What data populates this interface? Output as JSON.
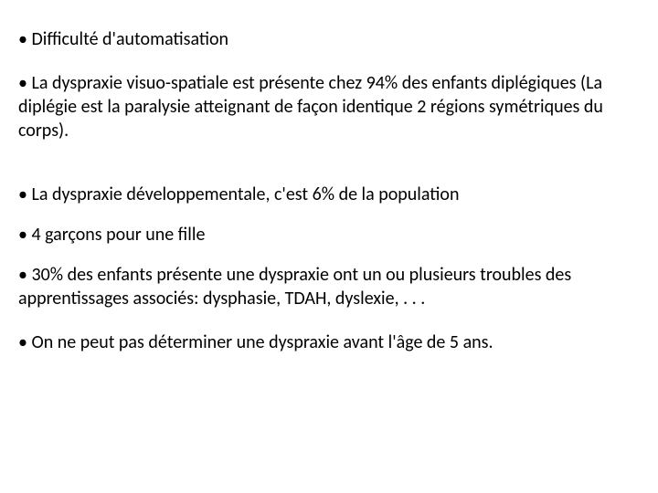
{
  "items": [
    "• Difficulté d'automatisation",
    "• La dyspraxie visuo-spatiale est présente chez 94% des enfants diplégiques (La diplégie est la paralysie atteignant de façon identique 2 régions symétriques du corps).",
    "• La dyspraxie développementale, c'est 6% de la population",
    "• 4 garçons pour une fille",
    "• 30% des enfants présente une dyspraxie ont un ou plusieurs troubles des apprentissages associés: dysphasie, TDAH, dyslexie, . . .",
    "• On ne peut pas déterminer une dyspraxie avant l'âge de 5 ans."
  ],
  "styles": {
    "font_size": 20,
    "line_height": 1.3,
    "text_color": "#000000",
    "background_color": "#ffffff",
    "font_family": "Calibri, Arial, sans-serif"
  }
}
